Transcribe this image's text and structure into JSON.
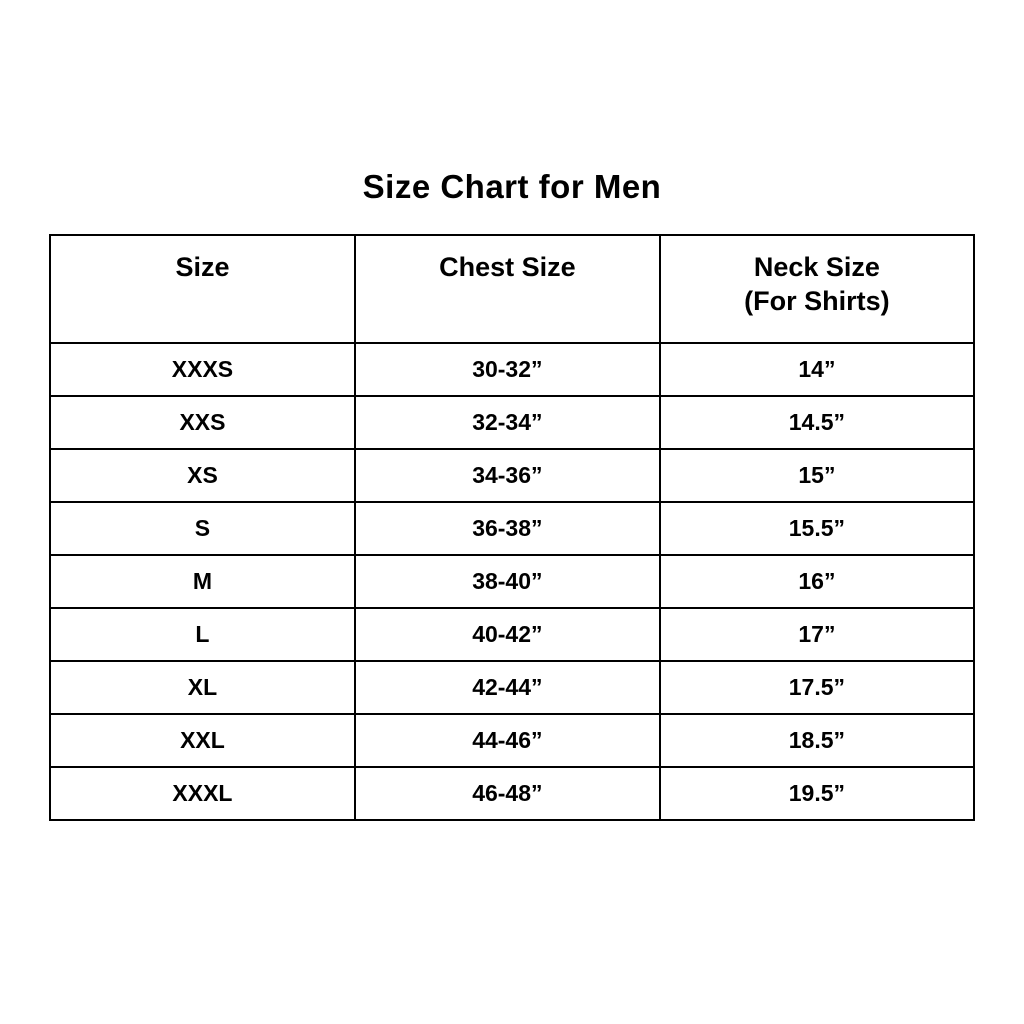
{
  "title": "Size Chart for Men",
  "colors": {
    "text": "#000000",
    "border": "#000000",
    "background": "#ffffff"
  },
  "header_display": {
    "neck_line1": "Neck Size",
    "neck_line2": "(For Shirts)"
  },
  "chart_data": {
    "type": "table",
    "title": "Size Chart for Men",
    "columns": [
      "Size",
      "Chest Size",
      "Neck Size (For Shirts)"
    ],
    "rows": [
      [
        "XXXS",
        "30-32”",
        "14”"
      ],
      [
        "XXS",
        "32-34”",
        "14.5”"
      ],
      [
        "XS",
        "34-36”",
        "15”"
      ],
      [
        "S",
        "36-38”",
        "15.5”"
      ],
      [
        "M",
        "38-40”",
        "16”"
      ],
      [
        "L",
        "40-42”",
        "17”"
      ],
      [
        "XL",
        "42-44”",
        "17.5”"
      ],
      [
        "XXL",
        "44-46”",
        "18.5”"
      ],
      [
        "XXXL",
        "46-48”",
        "19.5”"
      ]
    ]
  }
}
